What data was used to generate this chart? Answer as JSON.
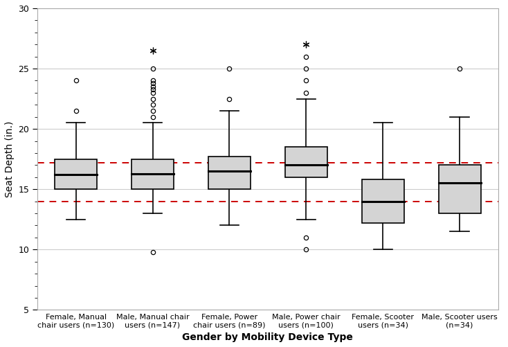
{
  "groups": [
    {
      "label": "Female, Manual\nchair users (n=130)",
      "q1": 15.0,
      "median": 16.2,
      "q3": 17.5,
      "whisker_low": 12.5,
      "whisker_high": 20.5,
      "outliers_circle": [
        21.5,
        24.0
      ],
      "outliers_star": [],
      "low_outliers_circle": []
    },
    {
      "label": "Male, Manual chair\nusers (n=147)",
      "q1": 15.0,
      "median": 16.3,
      "q3": 17.5,
      "whisker_low": 13.0,
      "whisker_high": 20.5,
      "outliers_circle": [
        21.0,
        21.5,
        22.0,
        22.5,
        23.0,
        23.3,
        23.5,
        23.8,
        24.0,
        25.0
      ],
      "outliers_star": [
        26.5
      ],
      "low_outliers_circle": [
        9.8
      ]
    },
    {
      "label": "Female, Power\nchair users (n=89)",
      "q1": 15.0,
      "median": 16.5,
      "q3": 17.7,
      "whisker_low": 12.0,
      "whisker_high": 21.5,
      "outliers_circle": [
        22.5,
        25.0
      ],
      "outliers_star": [],
      "low_outliers_circle": []
    },
    {
      "label": "Male, Power chair\nusers (n=100)",
      "q1": 16.0,
      "median": 17.0,
      "q3": 18.5,
      "whisker_low": 12.5,
      "whisker_high": 22.5,
      "outliers_circle": [
        23.0,
        24.0,
        25.0,
        26.0
      ],
      "outliers_star": [
        27.0
      ],
      "low_outliers_circle": [
        10.0,
        11.0
      ]
    },
    {
      "label": "Female, Scooter\nusers (n=34)",
      "q1": 12.2,
      "median": 14.0,
      "q3": 15.8,
      "whisker_low": 10.0,
      "whisker_high": 20.5,
      "outliers_circle": [],
      "outliers_star": [],
      "low_outliers_circle": []
    },
    {
      "label": "Male, Scooter users\n(n=34)",
      "q1": 13.0,
      "median": 15.5,
      "q3": 17.0,
      "whisker_low": 11.5,
      "whisker_high": 21.0,
      "outliers_circle": [
        25.0
      ],
      "outliers_star": [],
      "low_outliers_circle": []
    }
  ],
  "red_dashed_lines": [
    17.2,
    14.0
  ],
  "ylim": [
    5,
    30
  ],
  "yticks": [
    5,
    10,
    15,
    20,
    25,
    30
  ],
  "ylabel": "Seat Depth (in.)",
  "xlabel": "Gender by Mobility Device Type",
  "box_facecolor": "#d4d4d4",
  "box_edge_color": "#000000",
  "median_color": "#000000",
  "whisker_color": "#000000",
  "cap_color": "#000000",
  "outlier_circle_color": "#000000",
  "outlier_star_color": "#000000",
  "red_line_color": "#cc0000",
  "plot_bg_color": "#ffffff",
  "fig_bg_color": "#ffffff",
  "grid_color": "#cccccc",
  "box_width": 0.55
}
